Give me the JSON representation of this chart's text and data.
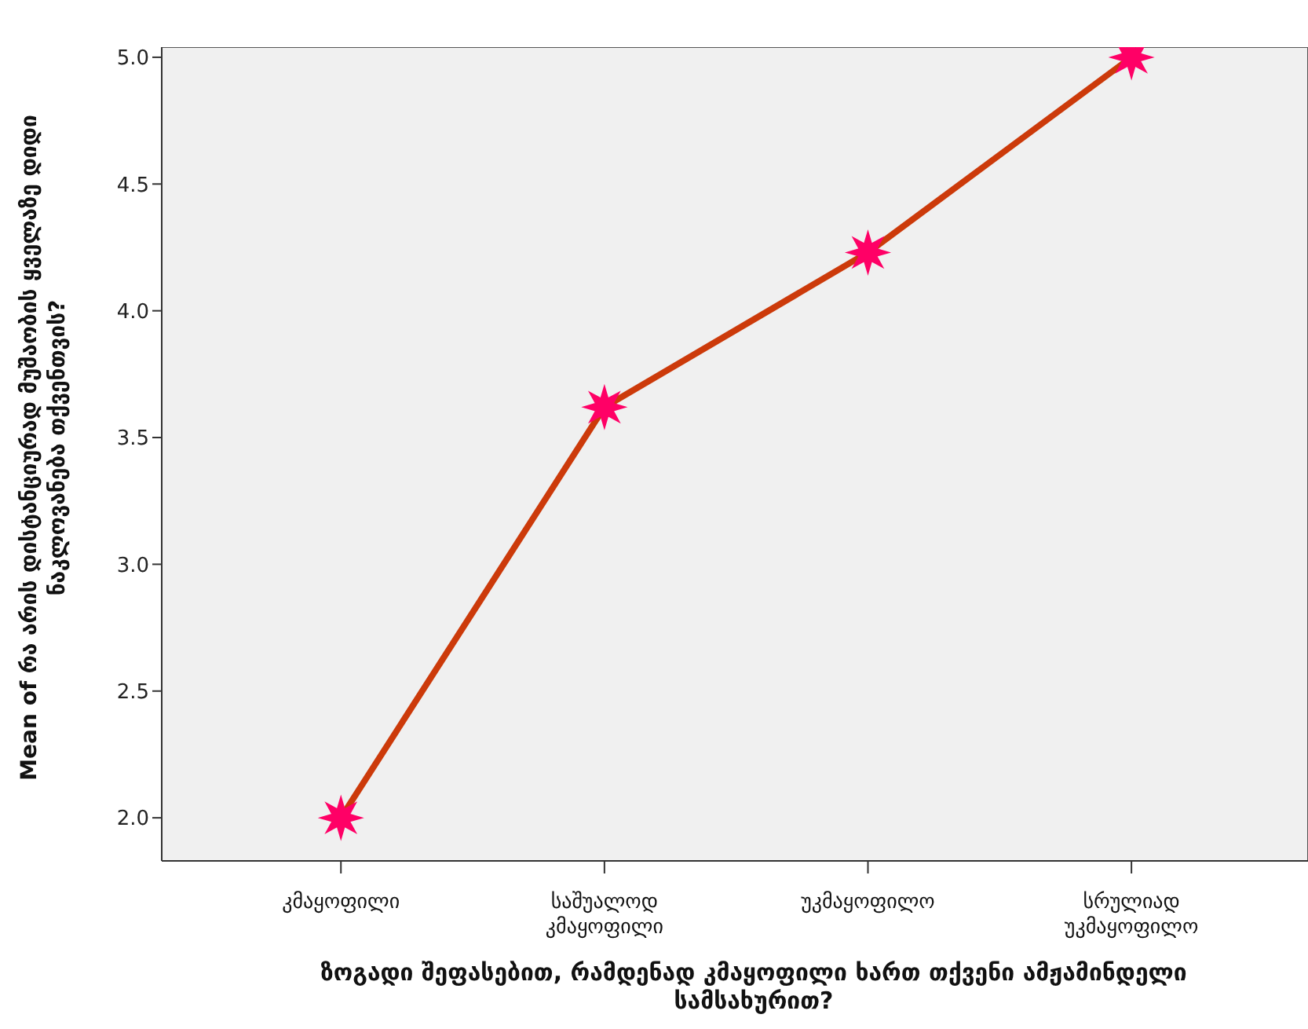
{
  "chart_data": {
    "type": "line",
    "xlabel": "ზოგადი შეფასებით, რამდენად კმაყოფილი ხართ თქვენი ამჟამინდელი სამსახურით?",
    "ylabel": "Mean of რა არის დისტანციურად მუშაობის ყველაზე დიდი ნაკლოვანება თქვენთვის?",
    "categories": [
      "კმაყოფილი",
      "საშუალოდ კმაყოფილი",
      "უკმაყოფილო",
      "სრულიად უკმაყოფილო"
    ],
    "series": [
      {
        "color": "#cc3a0a",
        "colors": [
          "#ff0066",
          "#ff0066",
          "#ff0066",
          "#ff0066"
        ],
        "values": [
          2.0,
          3.62,
          4.23,
          5.0
        ]
      }
    ],
    "ylim": [
      1.83,
      5.04
    ],
    "yticks": [
      {
        "value": 2.0,
        "label": "2.0"
      },
      {
        "value": 2.5,
        "label": "2.5"
      },
      {
        "value": 3.0,
        "label": "3.0"
      },
      {
        "value": 3.5,
        "label": "3.5"
      },
      {
        "value": 4.0,
        "label": "4.0"
      },
      {
        "value": 4.5,
        "label": "4.5"
      },
      {
        "value": 5.0,
        "label": "5.0"
      }
    ],
    "grid": false,
    "legend": false,
    "marker": "star",
    "line_style": "solid"
  }
}
